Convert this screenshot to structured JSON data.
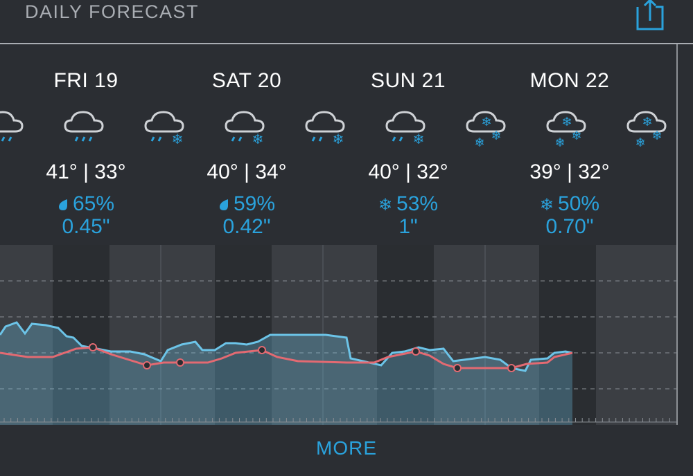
{
  "header": {
    "title": "DAILY FORECAST"
  },
  "days": [
    {
      "label": "FRI 19",
      "high": "41°",
      "low": "33°",
      "precip_type": "rain",
      "chance": "65%",
      "amount": "0.45\""
    },
    {
      "label": "SAT 20",
      "high": "40°",
      "low": "34°",
      "precip_type": "rain",
      "chance": "59%",
      "amount": "0.42\""
    },
    {
      "label": "SUN 21",
      "high": "40°",
      "low": "32°",
      "precip_type": "snow",
      "chance": "53%",
      "amount": "1\""
    },
    {
      "label": "MON 22",
      "high": "39°",
      "low": "32°",
      "precip_type": "snow",
      "chance": "50%",
      "amount": "0.70\""
    }
  ],
  "icons": [
    "cloud-rain-icon",
    "cloud-rain-icon",
    "cloud-rain-snow-icon",
    "cloud-rain-snow-icon",
    "cloud-rain-snow-icon",
    "cloud-rain-snow-icon",
    "cloud-snow-icon",
    "cloud-snow-icon",
    "cloud-snow-icon"
  ],
  "colors": {
    "accent": "#2aa2dc",
    "temperature_line": "#e36a72",
    "feels_like_line": "#6cc4e8",
    "background": "#2b2e33"
  },
  "footer": {
    "more_label": "MORE"
  }
}
